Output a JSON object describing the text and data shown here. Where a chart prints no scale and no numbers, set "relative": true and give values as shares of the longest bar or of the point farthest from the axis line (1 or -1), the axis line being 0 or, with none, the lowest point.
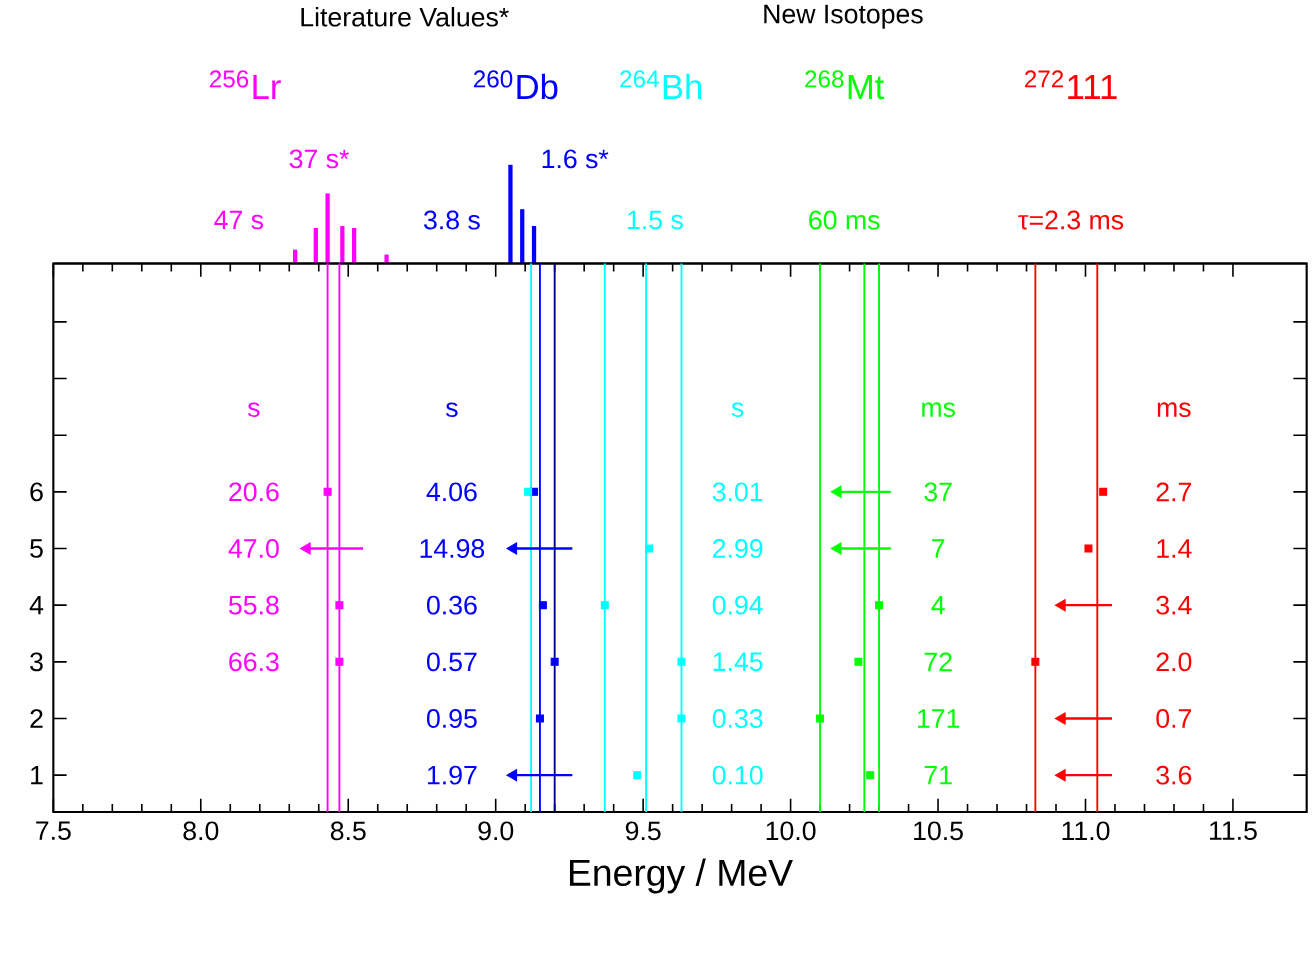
{
  "chart_data": [
    {
      "type": "bar",
      "relative": true,
      "xlim": [
        7.5,
        11.75
      ],
      "series": [
        {
          "color": "#ff00ff",
          "x": [
            8.32,
            8.39,
            8.43,
            8.48,
            8.52,
            8.63
          ],
          "values": [
            0.14,
            0.36,
            0.71,
            0.38,
            0.36,
            0.09
          ]
        },
        {
          "color": "#0000ff",
          "x": [
            9.05,
            9.09,
            9.13
          ],
          "values": [
            1,
            0.55,
            0.38
          ]
        }
      ],
      "annotations": [
        "Literature Values*",
        "New Isotopes",
        "47 s",
        "37 s*",
        "3.8 s",
        "1.6 s*",
        "1.5 s",
        "60 ms",
        "τ=2.3 ms"
      ]
    },
    {
      "type": "scatter",
      "xlabel": "Energy / MeV",
      "xlim": [
        7.5,
        11.75
      ],
      "ylim": [
        0.35,
        10.03
      ],
      "marker": "square",
      "xticks": [
        {
          "value": 7.5,
          "label": "7.5"
        },
        {
          "value": 8,
          "label": "8.0"
        },
        {
          "value": 8.5,
          "label": "8.5"
        },
        {
          "value": 9,
          "label": "9.0"
        },
        {
          "value": 9.5,
          "label": "9.5"
        },
        {
          "value": 10,
          "label": "10.0"
        },
        {
          "value": 10.5,
          "label": "10.5"
        },
        {
          "value": 11,
          "label": "11.0"
        },
        {
          "value": 11.5,
          "label": "11.5"
        }
      ],
      "yticks": [
        1,
        2,
        3,
        4,
        5,
        6,
        {
          "value": 7,
          "label": null
        },
        {
          "value": 8,
          "label": null
        },
        {
          "value": 9,
          "label": null
        }
      ],
      "series": [
        {
          "name": "$^{256}$Lr",
          "color": "#ff00ff",
          "x": [
            8.43,
            8.47,
            8.47
          ],
          "values": [
            6,
            4,
            3
          ]
        },
        {
          "name": "$^{260}$Db",
          "color": "#0000ff",
          "x": [
            9.13,
            9.16,
            9.2,
            9.15
          ],
          "values": [
            6,
            4,
            3,
            2
          ]
        },
        {
          "name": "$^{264}$Bh",
          "color": "#00ffff",
          "x": [
            9.11,
            9.52,
            9.37,
            9.63,
            9.63,
            9.48
          ],
          "values": [
            6,
            5,
            4,
            3,
            2,
            1
          ]
        },
        {
          "name": "$^{268}$Mt",
          "color": "#00ff00",
          "x": [
            10.3,
            10.23,
            10.1,
            10.27
          ],
          "values": [
            4,
            3,
            2,
            1
          ]
        },
        {
          "name": "$^{272}$111",
          "color": "#ff0000",
          "x": [
            11.06,
            11.01,
            10.83
          ],
          "values": [
            6,
            5,
            3
          ]
        },
        {
          "color": "#ff00ff",
          "marker": "triangle",
          "x": [
            8.36
          ],
          "values": [
            5
          ],
          "xerrors": [
            [
              8.36,
              8.55
            ]
          ]
        },
        {
          "color": "#0000ff",
          "marker": "triangle",
          "x": [
            9.06,
            9.06
          ],
          "values": [
            5,
            1
          ],
          "xerrors": [
            [
              9.06,
              9.26
            ],
            [
              9.06,
              9.26
            ]
          ]
        },
        {
          "color": "#00ff00",
          "marker": "triangle",
          "x": [
            10.16,
            10.16
          ],
          "values": [
            6,
            5
          ],
          "xerrors": [
            [
              10.16,
              10.34
            ],
            [
              10.16,
              10.34
            ]
          ]
        },
        {
          "color": "#ff0000",
          "marker": "triangle",
          "x": [
            10.92,
            10.92,
            10.92
          ],
          "values": [
            4,
            2,
            1
          ],
          "xerrors": [
            [
              10.92,
              11.09
            ],
            [
              10.92,
              11.09
            ],
            [
              10.92,
              11.09
            ]
          ]
        }
      ],
      "ref_lines": [
        {
          "axis": "x",
          "value": 8.43,
          "color": "#ff00ff"
        },
        {
          "axis": "x",
          "value": 8.47,
          "color": "#ff00ff"
        },
        {
          "axis": "x",
          "value": 9.12,
          "color": "#00ffff"
        },
        {
          "axis": "x",
          "value": 9.15,
          "color": "#0000ff"
        },
        {
          "axis": "x",
          "value": 9.2,
          "color": "#000080"
        },
        {
          "axis": "x",
          "value": 9.37,
          "color": "#00ffff"
        },
        {
          "axis": "x",
          "value": 9.51,
          "color": "#00ffff"
        },
        {
          "axis": "x",
          "value": 9.63,
          "color": "#00ffff"
        },
        {
          "axis": "x",
          "value": 10.1,
          "color": "#00ff00"
        },
        {
          "axis": "x",
          "value": 10.25,
          "color": "#00ff00"
        },
        {
          "axis": "x",
          "value": 10.3,
          "color": "#00ff00"
        },
        {
          "axis": "x",
          "value": 10.83,
          "color": "#ff0000"
        },
        {
          "axis": "x",
          "value": 11.04,
          "color": "#ff0000"
        }
      ],
      "annotations": [
        "s",
        "20.6",
        "47.0",
        "55.8",
        "66.3",
        "s",
        "4.06",
        "14.98",
        "0.36",
        "0.57",
        "0.95",
        "1.97",
        "s",
        "3.01",
        "2.99",
        "0.94",
        "1.45",
        "0.33",
        "0.10",
        "ms",
        "37",
        "7",
        "4",
        "72",
        "171",
        "71",
        "ms",
        "2.7",
        "1.4",
        "3.4",
        "2.0",
        "0.7",
        "3.6"
      ]
    }
  ]
}
